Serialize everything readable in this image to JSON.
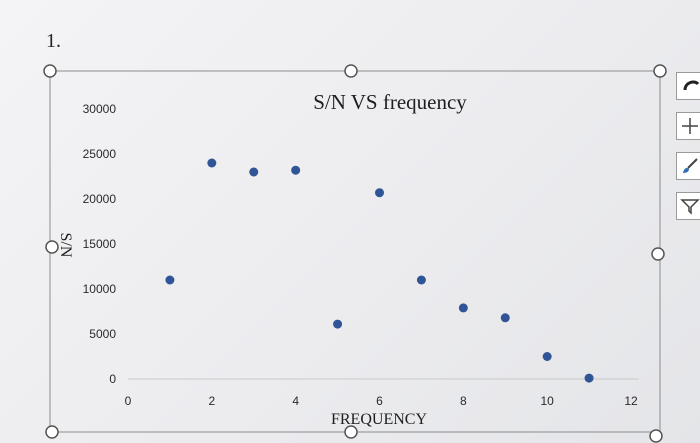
{
  "question": {
    "number": "1."
  },
  "chart_data": {
    "type": "scatter",
    "title": "S/N VS frequency",
    "xlabel": "FREQUENCY",
    "ylabel": "S/N",
    "xlim": [
      0,
      12
    ],
    "ylim": [
      0,
      30000
    ],
    "x_ticks": [
      0,
      2,
      4,
      6,
      8,
      10,
      12
    ],
    "y_ticks": [
      0,
      5000,
      10000,
      15000,
      20000,
      25000,
      30000
    ],
    "grid": false,
    "legend": "none",
    "marker_color": "#2f5597",
    "series": [
      {
        "x": [
          1,
          2,
          3,
          4,
          5,
          6,
          7,
          8,
          9,
          10,
          11
        ],
        "y": [
          11000,
          24000,
          23000,
          23200,
          6100,
          20700,
          11000,
          7900,
          6800,
          2500,
          100
        ]
      }
    ]
  },
  "toolbar": {
    "buttons": [
      "chart-layout-icon",
      "chart-elements-icon",
      "chart-styles-icon",
      "chart-filters-icon"
    ]
  }
}
